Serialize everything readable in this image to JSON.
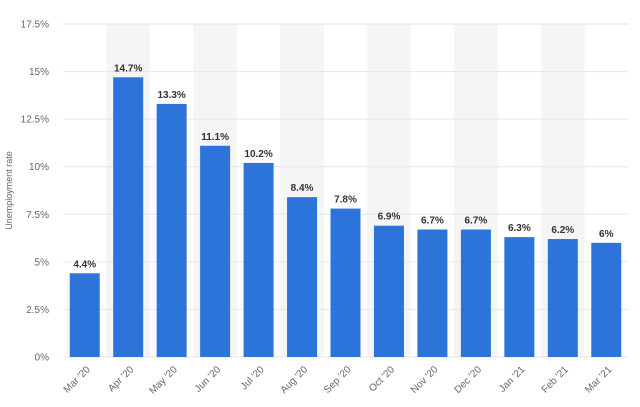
{
  "chart_data": {
    "type": "bar",
    "title": "",
    "xlabel": "",
    "ylabel": "Unemployment rate",
    "categories": [
      "Mar '20",
      "Apr '20",
      "May '20",
      "Jun '20",
      "Jul '20",
      "Aug '20",
      "Sep '20",
      "Oct '20",
      "Nov '20",
      "Dec '20",
      "Jan '21",
      "Feb '21",
      "Mar '21"
    ],
    "values": [
      4.4,
      14.7,
      13.3,
      11.1,
      10.2,
      8.4,
      7.8,
      6.9,
      6.7,
      6.7,
      6.3,
      6.2,
      6.0
    ],
    "data_labels": [
      "4.4%",
      "14.7%",
      "13.3%",
      "11.1%",
      "10.2%",
      "8.4%",
      "7.8%",
      "6.9%",
      "6.7%",
      "6.7%",
      "6.3%",
      "6.2%",
      "6%"
    ],
    "yticks": [
      0,
      2.5,
      5,
      7.5,
      10,
      12.5,
      15,
      17.5
    ],
    "ytick_labels": [
      "0%",
      "2.5%",
      "5%",
      "7.5%",
      "10%",
      "12.5%",
      "15%",
      "17.5%"
    ],
    "ylim": [
      0,
      17.5
    ],
    "grid": true,
    "legend": "none",
    "colors": {
      "bar": "#2d74da",
      "band": "#f5f5f5",
      "grid": "#e6e6e6"
    }
  }
}
